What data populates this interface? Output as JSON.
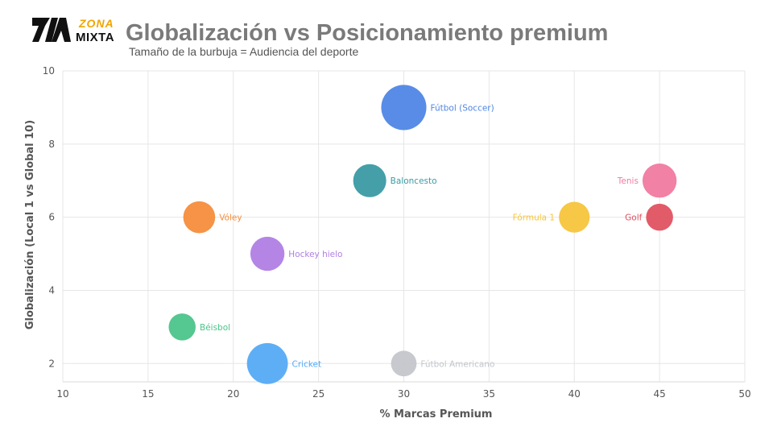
{
  "brand": {
    "logo_top": "ZONA",
    "logo_bottom": "MIXTA",
    "accent": "#f0a500"
  },
  "header": {
    "title": "Globalización vs Posicionamiento premium",
    "subtitle": "Tamaño de la burbuja = Audiencia del deporte"
  },
  "chart_data": {
    "type": "scatter",
    "variant": "bubble",
    "xlabel": "% Marcas Premium",
    "ylabel": "Globalización (Local 1 vs Global 10)",
    "xlim": [
      10,
      50
    ],
    "ylim": [
      1.5,
      10
    ],
    "xticks": [
      10,
      15,
      20,
      25,
      30,
      35,
      40,
      45,
      50
    ],
    "yticks": [
      2,
      4,
      6,
      8,
      10
    ],
    "grid": true,
    "legend": "none",
    "points": [
      {
        "label": "Fútbol (Soccer)",
        "x": 30,
        "y": 9,
        "audience": 28,
        "color": "#4f86e6",
        "label_side": "right"
      },
      {
        "label": "Baloncesto",
        "x": 28,
        "y": 7,
        "audience": 15,
        "color": "#3a9aa4",
        "label_side": "right"
      },
      {
        "label": "Tenis",
        "x": 45,
        "y": 7,
        "audience": 16,
        "color": "#f07aa0",
        "label_side": "left"
      },
      {
        "label": "Vóley",
        "x": 18,
        "y": 6,
        "audience": 14,
        "color": "#f58d3c",
        "label_side": "right"
      },
      {
        "label": "Fórmula 1",
        "x": 40,
        "y": 6,
        "audience": 13,
        "color": "#f7c43c",
        "label_side": "left"
      },
      {
        "label": "Golf",
        "x": 45,
        "y": 6,
        "audience": 10,
        "color": "#e05260",
        "label_side": "left"
      },
      {
        "label": "Hockey hielo",
        "x": 22,
        "y": 5,
        "audience": 16,
        "color": "#b07ee4",
        "label_side": "right"
      },
      {
        "label": "Béisbol",
        "x": 17,
        "y": 3,
        "audience": 10,
        "color": "#4cc48a",
        "label_side": "right"
      },
      {
        "label": "Cricket",
        "x": 22,
        "y": 2,
        "audience": 23,
        "color": "#55aaf5",
        "label_side": "right"
      },
      {
        "label": "Fútbol Americano",
        "x": 30,
        "y": 2,
        "audience": 9,
        "color": "#c4c6cc",
        "label_side": "right"
      }
    ]
  }
}
